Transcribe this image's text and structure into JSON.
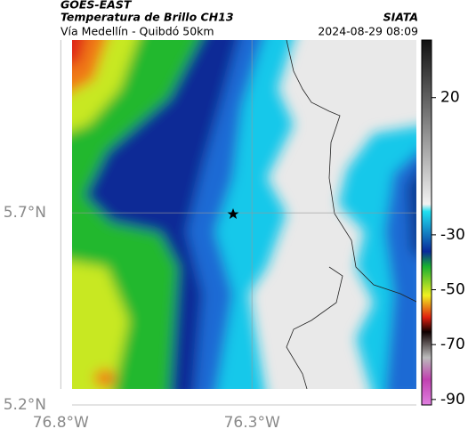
{
  "header": {
    "title": "GOES-EAST",
    "subtitle": "Temperatura de Brillo CH13",
    "route": "Vía Medellín - Quibdó 50km",
    "source": "SIATA",
    "datetime": "2024-08-29 08:09"
  },
  "map": {
    "xlim": [
      -76.81,
      -75.87
    ],
    "ylim": [
      5.2,
      6.15
    ],
    "xticks": [
      {
        "value": -76.8,
        "label": "76.8°W"
      },
      {
        "value": -76.3,
        "label": "76.3°W"
      }
    ],
    "yticks": [
      {
        "value": 5.7,
        "label": "5.7°N"
      },
      {
        "value": 5.2,
        "label": "5.2°N"
      }
    ],
    "grid": true
  },
  "colorbar": {
    "lim": [
      -92,
      41
    ],
    "ticks": [
      20,
      -30,
      -50,
      -70,
      -90
    ]
  }
}
